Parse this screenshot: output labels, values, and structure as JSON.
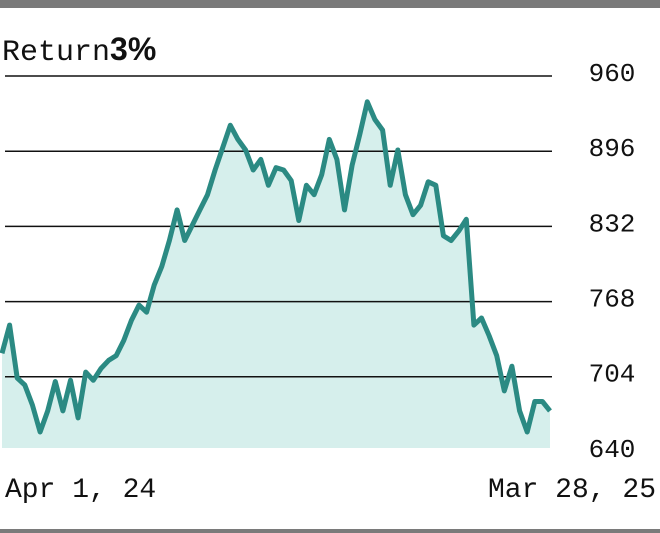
{
  "chart_data": {
    "type": "line",
    "title": "Return",
    "title_value": "3%",
    "categories": [
      "Apr 1, 24",
      null,
      null,
      null,
      null,
      null,
      null,
      null,
      null,
      null,
      null,
      null,
      null,
      null,
      null,
      null,
      null,
      null,
      null,
      null,
      null,
      null,
      null,
      null,
      null,
      null,
      null,
      null,
      null,
      null,
      null,
      null,
      null,
      null,
      null,
      null,
      null,
      null,
      null,
      null,
      null,
      null,
      null,
      null,
      null,
      null,
      null,
      null,
      null,
      null,
      null,
      null,
      null,
      null,
      null,
      null,
      null,
      null,
      null,
      null,
      null,
      null,
      null,
      null,
      null,
      null,
      null,
      null,
      null,
      null,
      null,
      null,
      "Mar 28, 25"
    ],
    "series": [
      {
        "name": "Return",
        "color": "#2b8a83",
        "values": [
          724,
          748,
          703,
          697,
          680,
          657,
          675,
          700,
          675,
          701,
          669,
          708,
          701,
          711,
          718,
          722,
          735,
          752,
          765,
          759,
          782,
          798,
          820,
          846,
          820,
          833,
          846,
          859,
          880,
          899,
          918,
          906,
          897,
          880,
          889,
          867,
          882,
          880,
          871,
          837,
          867,
          859,
          876,
          906,
          889,
          846,
          884,
          910,
          938,
          923,
          914,
          867,
          897,
          859,
          842,
          850,
          870,
          867,
          824,
          820,
          828,
          838,
          748,
          754,
          739,
          722,
          692,
          713,
          675,
          657,
          683,
          683,
          675
        ]
      }
    ],
    "ylim": [
      640,
      960
    ],
    "yticks": [
      640,
      704,
      768,
      832,
      896,
      960
    ],
    "grid": true,
    "fill": "#d6efec"
  }
}
